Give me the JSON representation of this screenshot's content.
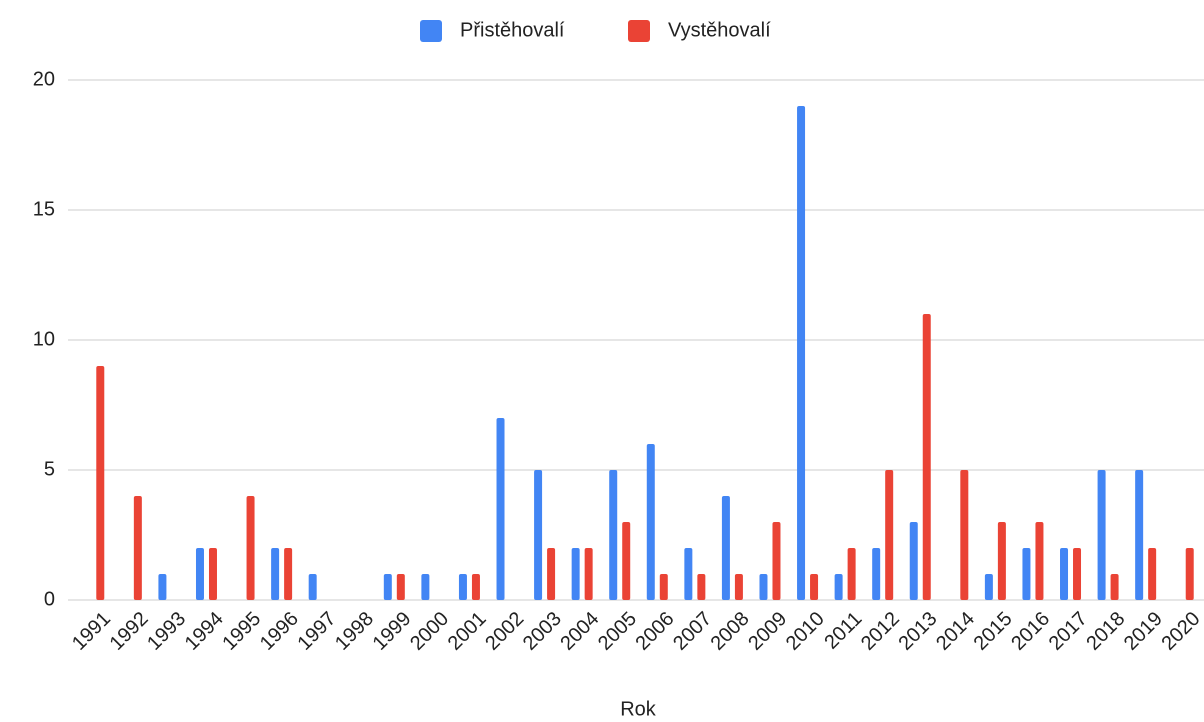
{
  "chart_data": {
    "type": "bar",
    "categories": [
      "1991",
      "1992",
      "1993",
      "1994",
      "1995",
      "1996",
      "1997",
      "1998",
      "1999",
      "2000",
      "2001",
      "2002",
      "2003",
      "2004",
      "2005",
      "2006",
      "2007",
      "2008",
      "2009",
      "2010",
      "2011",
      "2012",
      "2013",
      "2014",
      "2015",
      "2016",
      "2017",
      "2018",
      "2019",
      "2020"
    ],
    "series": [
      {
        "name": "Přistěhovalí",
        "color": "#4285f4",
        "values": [
          0,
          0,
          1,
          2,
          0,
          2,
          1,
          0,
          1,
          1,
          1,
          7,
          5,
          2,
          5,
          6,
          2,
          4,
          1,
          19,
          1,
          2,
          3,
          0,
          1,
          2,
          2,
          5,
          5,
          0
        ]
      },
      {
        "name": "Vystěhovalí",
        "color": "#ea4335",
        "values": [
          9,
          4,
          0,
          2,
          4,
          2,
          0,
          0,
          1,
          0,
          1,
          0,
          2,
          2,
          3,
          1,
          1,
          1,
          3,
          1,
          2,
          5,
          11,
          5,
          3,
          3,
          2,
          1,
          2,
          2
        ]
      }
    ],
    "x_label": "Rok",
    "ylim": [
      0,
      20
    ],
    "yticks": [
      0,
      5,
      10,
      15,
      20
    ],
    "grid": true,
    "legend": "top"
  }
}
